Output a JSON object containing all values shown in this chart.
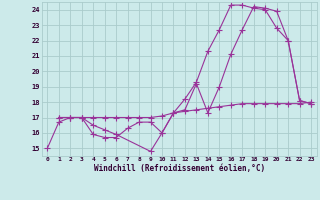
{
  "xlabel": "Windchill (Refroidissement éolien,°C)",
  "bg_color": "#cceaea",
  "grid_color": "#aacccc",
  "line_color": "#993399",
  "yticks": [
    15,
    16,
    17,
    18,
    19,
    20,
    21,
    22,
    23,
    24
  ],
  "xticks": [
    0,
    1,
    2,
    3,
    4,
    5,
    6,
    7,
    8,
    9,
    10,
    11,
    12,
    13,
    14,
    15,
    16,
    17,
    18,
    19,
    20,
    21,
    22,
    23
  ],
  "line1_x": [
    0,
    1,
    2,
    3,
    4,
    5,
    6,
    7,
    8,
    9,
    10,
    11,
    12,
    13,
    14,
    15,
    16,
    17,
    18,
    19,
    20,
    21,
    22,
    23
  ],
  "line1_y": [
    15,
    16.7,
    17.0,
    17.0,
    15.9,
    15.7,
    15.7,
    16.3,
    16.7,
    16.7,
    16.0,
    17.3,
    17.5,
    19.2,
    17.3,
    19.0,
    21.1,
    22.7,
    24.2,
    24.1,
    23.9,
    22.0,
    18.1,
    17.9
  ],
  "line2_x": [
    1,
    2,
    3,
    4,
    5,
    6,
    7,
    8,
    9,
    10,
    11,
    12,
    13,
    14,
    15,
    16,
    17,
    18,
    19,
    20,
    21,
    22,
    23
  ],
  "line2_y": [
    17.0,
    17.0,
    17.0,
    17.0,
    17.0,
    17.0,
    17.0,
    17.0,
    17.0,
    17.1,
    17.3,
    17.4,
    17.5,
    17.6,
    17.7,
    17.8,
    17.9,
    17.9,
    17.9,
    17.9,
    17.9,
    17.9,
    18.0
  ],
  "line3_x": [
    1,
    2,
    3,
    4,
    5,
    6,
    9,
    10,
    11,
    12,
    13,
    14,
    15,
    16,
    17,
    18,
    19,
    20,
    21,
    22,
    23
  ],
  "line3_y": [
    17.0,
    17.0,
    17.0,
    16.5,
    16.2,
    15.9,
    14.8,
    16.0,
    17.3,
    18.2,
    19.3,
    21.3,
    22.7,
    24.3,
    24.3,
    24.1,
    24.0,
    22.8,
    22.0,
    18.1,
    17.9
  ]
}
